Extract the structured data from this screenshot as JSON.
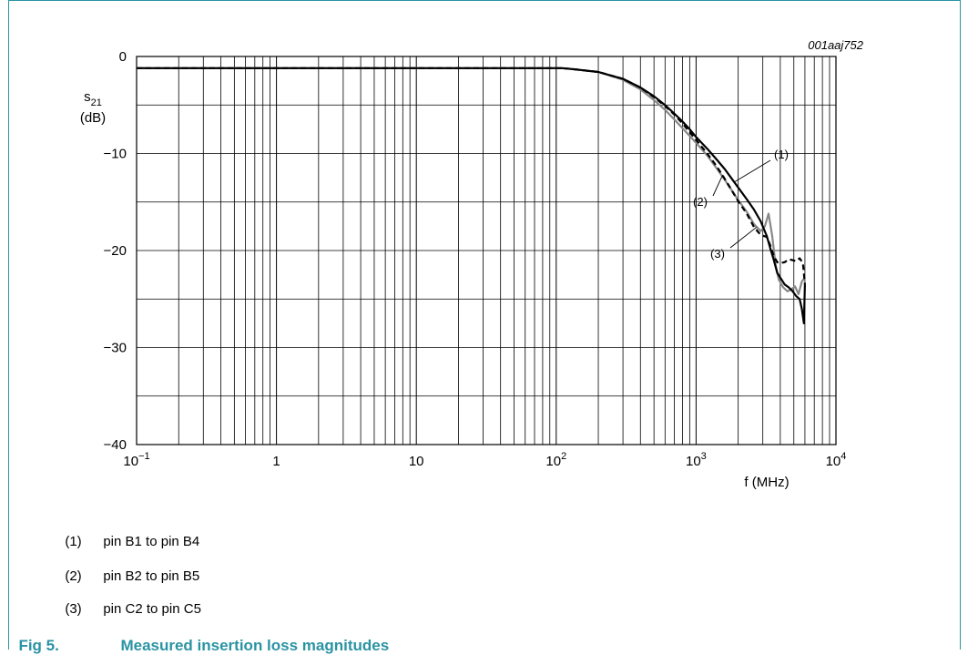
{
  "figure_id": "001aaj752",
  "caption": {
    "number": "Fig 5.",
    "title": "Measured insertion loss magnitudes"
  },
  "legend": [
    {
      "num": "(1)",
      "text": "pin B1 to pin B4"
    },
    {
      "num": "(2)",
      "text": "pin B2 to pin B5"
    },
    {
      "num": "(3)",
      "text": "pin C2 to pin C5"
    }
  ],
  "colors": {
    "frame": "#2a93a3",
    "caption": "#2a93a3",
    "series1": "#000000",
    "series2": "#888888",
    "series3": "#000000"
  },
  "chart_data": {
    "type": "line",
    "xscale": "log",
    "xlim": [
      0.1,
      10000
    ],
    "ylim": [
      -40,
      0
    ],
    "xlabel": "f (MHz)",
    "ylabel_main": "s",
    "ylabel_sub": "21",
    "ylabel_unit": "(dB)",
    "x_ticks": [
      {
        "value": 0.1,
        "base": "10",
        "exp": "−1"
      },
      {
        "value": 1,
        "base": "1",
        "exp": ""
      },
      {
        "value": 10,
        "base": "10",
        "exp": ""
      },
      {
        "value": 100,
        "base": "10",
        "exp": "2"
      },
      {
        "value": 1000,
        "base": "10",
        "exp": "3"
      },
      {
        "value": 10000,
        "base": "10",
        "exp": "4"
      }
    ],
    "y_ticks": [
      {
        "value": 0,
        "label": "0"
      },
      {
        "value": -10,
        "label": "−10"
      },
      {
        "value": -20,
        "label": "−20"
      },
      {
        "value": -30,
        "label": "−30"
      },
      {
        "value": -40,
        "label": "−40"
      }
    ],
    "grid": true,
    "series": [
      {
        "label": "(1)",
        "style": "solid",
        "color": "#000000",
        "width": 2.2,
        "points": [
          [
            0.1,
            -1.2
          ],
          [
            110,
            -1.2
          ],
          [
            130,
            -1.3
          ],
          [
            200,
            -1.6
          ],
          [
            300,
            -2.3
          ],
          [
            400,
            -3.2
          ],
          [
            500,
            -4.1
          ],
          [
            600,
            -5.0
          ],
          [
            700,
            -5.9
          ],
          [
            800,
            -6.7
          ],
          [
            900,
            -7.5
          ],
          [
            1000,
            -8.3
          ],
          [
            1200,
            -9.5
          ],
          [
            1400,
            -10.6
          ],
          [
            1600,
            -11.6
          ],
          [
            1800,
            -12.6
          ],
          [
            2000,
            -13.5
          ],
          [
            2300,
            -14.7
          ],
          [
            2600,
            -15.8
          ],
          [
            2900,
            -17.0
          ],
          [
            3200,
            -18.5
          ],
          [
            3400,
            -19.8
          ],
          [
            3600,
            -21.0
          ],
          [
            3800,
            -22.3
          ],
          [
            4000,
            -22.8
          ],
          [
            4300,
            -23.5
          ],
          [
            4600,
            -23.8
          ],
          [
            4900,
            -24.2
          ],
          [
            5200,
            -24.7
          ],
          [
            5500,
            -25.0
          ],
          [
            5700,
            -26.0
          ],
          [
            5900,
            -27.5
          ],
          [
            6000,
            -23.5
          ]
        ]
      },
      {
        "label": "(2)",
        "style": "solid",
        "color": "#888888",
        "width": 2.2,
        "points": [
          [
            0.1,
            -1.2
          ],
          [
            110,
            -1.2
          ],
          [
            130,
            -1.3
          ],
          [
            200,
            -1.6
          ],
          [
            300,
            -2.4
          ],
          [
            400,
            -3.4
          ],
          [
            500,
            -4.5
          ],
          [
            600,
            -5.5
          ],
          [
            700,
            -6.5
          ],
          [
            800,
            -7.4
          ],
          [
            900,
            -8.2
          ],
          [
            1000,
            -8.9
          ],
          [
            1200,
            -10.2
          ],
          [
            1400,
            -11.5
          ],
          [
            1600,
            -12.7
          ],
          [
            1800,
            -13.8
          ],
          [
            2000,
            -14.8
          ],
          [
            2300,
            -16.0
          ],
          [
            2600,
            -17.3
          ],
          [
            2900,
            -18.0
          ],
          [
            3100,
            -17.5
          ],
          [
            3300,
            -16.2
          ],
          [
            3500,
            -18.5
          ],
          [
            3700,
            -21.5
          ],
          [
            3900,
            -23.0
          ],
          [
            4200,
            -23.8
          ],
          [
            4500,
            -24.2
          ],
          [
            4800,
            -24.0
          ],
          [
            5100,
            -23.7
          ],
          [
            5400,
            -24.5
          ],
          [
            5700,
            -23.2
          ],
          [
            6000,
            -22.8
          ]
        ]
      },
      {
        "label": "(3)",
        "style": "dashed",
        "color": "#000000",
        "width": 2.2,
        "points": [
          [
            0.1,
            -1.2
          ],
          [
            110,
            -1.2
          ],
          [
            130,
            -1.3
          ],
          [
            200,
            -1.6
          ],
          [
            300,
            -2.3
          ],
          [
            400,
            -3.2
          ],
          [
            500,
            -4.2
          ],
          [
            600,
            -5.1
          ],
          [
            700,
            -6.0
          ],
          [
            800,
            -6.9
          ],
          [
            900,
            -7.8
          ],
          [
            1000,
            -8.6
          ],
          [
            1200,
            -10.0
          ],
          [
            1400,
            -11.3
          ],
          [
            1600,
            -12.6
          ],
          [
            1800,
            -13.8
          ],
          [
            2000,
            -14.9
          ],
          [
            2300,
            -16.2
          ],
          [
            2600,
            -17.6
          ],
          [
            2900,
            -18.4
          ],
          [
            3200,
            -18.6
          ],
          [
            3400,
            -19.5
          ],
          [
            3600,
            -20.6
          ],
          [
            3800,
            -21.2
          ],
          [
            4000,
            -21.3
          ],
          [
            4300,
            -21.2
          ],
          [
            4600,
            -20.9
          ],
          [
            4900,
            -21.0
          ],
          [
            5200,
            -21.1
          ],
          [
            5500,
            -20.8
          ],
          [
            5800,
            -21.3
          ],
          [
            6000,
            -23.5
          ]
        ]
      }
    ]
  }
}
